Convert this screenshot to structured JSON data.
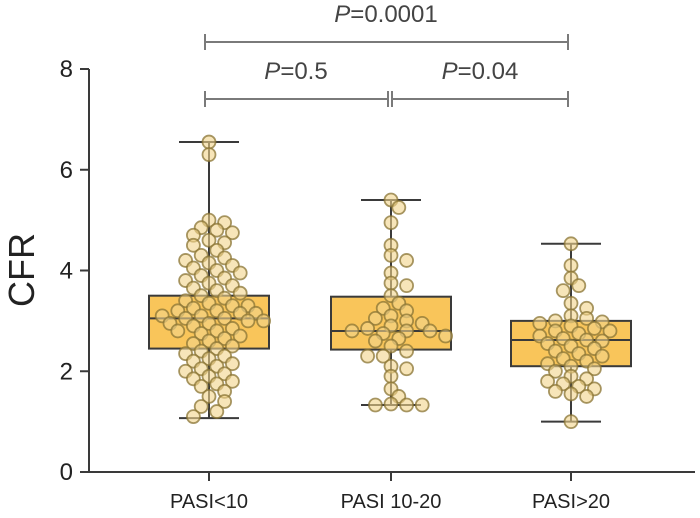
{
  "chart_data": {
    "type": "box",
    "title": "",
    "xlabel": "",
    "ylabel": "CFR",
    "ylim": [
      0,
      8
    ],
    "yticks": [
      0,
      2,
      4,
      6,
      8
    ],
    "grid": false,
    "legend": null,
    "categories": [
      "PASI<10",
      "PASI 10-20",
      "PASI>20"
    ],
    "boxes": [
      {
        "category": "PASI<10",
        "min": 1.07,
        "q1": 2.45,
        "median": 3.05,
        "q3": 3.5,
        "max": 6.55
      },
      {
        "category": "PASI 10-20",
        "min": 1.33,
        "q1": 2.43,
        "median": 2.8,
        "q3": 3.48,
        "max": 5.4
      },
      {
        "category": "PASI>20",
        "min": 1.0,
        "q1": 2.1,
        "median": 2.62,
        "q3": 3.0,
        "max": 4.53
      }
    ],
    "points": [
      [
        6.55,
        6.3,
        5.0,
        4.95,
        4.85,
        4.8,
        4.75,
        4.7,
        4.6,
        4.55,
        4.5,
        4.4,
        4.3,
        4.25,
        4.2,
        4.15,
        4.1,
        4.05,
        4.0,
        3.95,
        3.9,
        3.85,
        3.8,
        3.75,
        3.7,
        3.65,
        3.6,
        3.55,
        3.5,
        3.45,
        3.4,
        3.35,
        3.3,
        3.3,
        3.25,
        3.2,
        3.2,
        3.15,
        3.15,
        3.1,
        3.1,
        3.05,
        3.05,
        3.0,
        3.0,
        2.95,
        2.95,
        2.9,
        2.85,
        2.8,
        2.8,
        2.75,
        2.7,
        2.65,
        2.6,
        2.55,
        2.5,
        2.45,
        2.4,
        2.35,
        2.3,
        2.25,
        2.2,
        2.15,
        2.1,
        2.05,
        2.0,
        1.95,
        1.9,
        1.85,
        1.8,
        1.75,
        1.7,
        1.6,
        1.5,
        1.4,
        1.3,
        1.2,
        1.1
      ],
      [
        5.4,
        5.25,
        4.95,
        4.5,
        4.3,
        4.2,
        3.95,
        3.75,
        3.7,
        3.5,
        3.35,
        3.25,
        3.2,
        3.1,
        3.05,
        3.0,
        2.95,
        2.9,
        2.85,
        2.8,
        2.8,
        2.8,
        2.75,
        2.7,
        2.65,
        2.6,
        2.5,
        2.4,
        2.3,
        2.3,
        2.1,
        2.05,
        1.9,
        1.65,
        1.5,
        1.35,
        1.33,
        1.33,
        1.33
      ],
      [
        4.53,
        4.1,
        3.85,
        3.7,
        3.6,
        3.35,
        3.25,
        3.1,
        3.05,
        3.0,
        2.98,
        2.95,
        2.9,
        2.85,
        2.8,
        2.8,
        2.75,
        2.7,
        2.65,
        2.62,
        2.6,
        2.55,
        2.5,
        2.45,
        2.4,
        2.35,
        2.3,
        2.25,
        2.2,
        2.15,
        2.1,
        2.05,
        2.0,
        1.9,
        1.85,
        1.8,
        1.75,
        1.7,
        1.65,
        1.6,
        1.55,
        1.5,
        1.0
      ]
    ],
    "comparisons": [
      {
        "groups": [
          "PASI<10",
          "PASI>20"
        ],
        "label_prefix": "P",
        "label_value": "=0.0001"
      },
      {
        "groups": [
          "PASI<10",
          "PASI 10-20"
        ],
        "label_prefix": "P",
        "label_value": "=0.5"
      },
      {
        "groups": [
          "PASI 10-20",
          "PASI>20"
        ],
        "label_prefix": "P",
        "label_value": "=0.04"
      }
    ],
    "colors": {
      "box_fill": "#f9c55a",
      "box_stroke": "#3a3a3a",
      "point_fill": "#f1d38a",
      "point_stroke": "#8a7434",
      "axis": "#3a3a3a",
      "bracket": "#7a7a7a"
    }
  }
}
